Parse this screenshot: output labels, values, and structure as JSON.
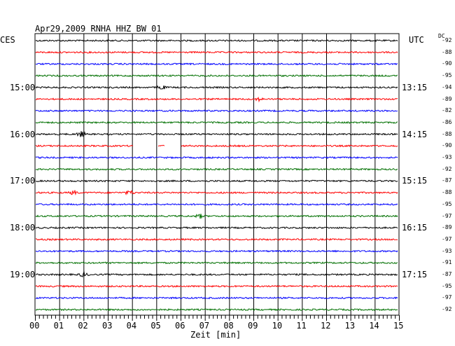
{
  "header": {
    "title": "Apr29,2009   RNHA HHZ BW 01",
    "left_zone": "CES",
    "right_zone": "UTC",
    "dc_label": "DC"
  },
  "chart_data": {
    "type": "line",
    "title": "Apr29,2009   RNHA HHZ BW 01",
    "xlabel": "Zeit [min]",
    "ylabel": "",
    "x_ticks": [
      "00",
      "01",
      "02",
      "03",
      "04",
      "05",
      "06",
      "07",
      "08",
      "09",
      "10",
      "11",
      "12",
      "13",
      "14",
      "15"
    ],
    "xlim": [
      0,
      15
    ],
    "grid": true,
    "trace_colors": [
      "#000000",
      "#ff0000",
      "#0000ff",
      "#007000"
    ],
    "left_time_labels": [
      {
        "trace": 4,
        "label": "15:00"
      },
      {
        "trace": 8,
        "label": "16:00"
      },
      {
        "trace": 12,
        "label": "17:00"
      },
      {
        "trace": 16,
        "label": "18:00"
      },
      {
        "trace": 20,
        "label": "19:00"
      }
    ],
    "right_time_labels": [
      {
        "trace": 4,
        "label": "13:15"
      },
      {
        "trace": 8,
        "label": "14:15"
      },
      {
        "trace": 12,
        "label": "15:15"
      },
      {
        "trace": 16,
        "label": "16:15"
      },
      {
        "trace": 20,
        "label": "17:15"
      }
    ],
    "dc_offsets": [
      -92,
      -88,
      -90,
      -95,
      -94,
      -89,
      -82,
      -86,
      -88,
      -90,
      -93,
      -92,
      -87,
      -88,
      -95,
      -97,
      -89,
      -97,
      -93,
      -91,
      -87,
      -95,
      -97,
      -92
    ],
    "data_gaps": [
      {
        "trace": 9,
        "start_min": 4.05,
        "end_min": 5.05
      },
      {
        "trace": 9,
        "start_min": 5.35,
        "end_min": 6.0
      }
    ],
    "events": [
      {
        "trace": 8,
        "at_min": 1.9,
        "amplitude": 2.5
      },
      {
        "trace": 4,
        "at_min": 5.2,
        "amplitude": 2.0
      },
      {
        "trace": 13,
        "at_min": 1.6,
        "amplitude": 2.0
      },
      {
        "trace": 13,
        "at_min": 3.9,
        "amplitude": 2.0
      },
      {
        "trace": 20,
        "at_min": 2.0,
        "amplitude": 2.0
      },
      {
        "trace": 15,
        "at_min": 6.8,
        "amplitude": 1.8
      },
      {
        "trace": 5,
        "at_min": 9.2,
        "amplitude": 1.5
      }
    ]
  }
}
